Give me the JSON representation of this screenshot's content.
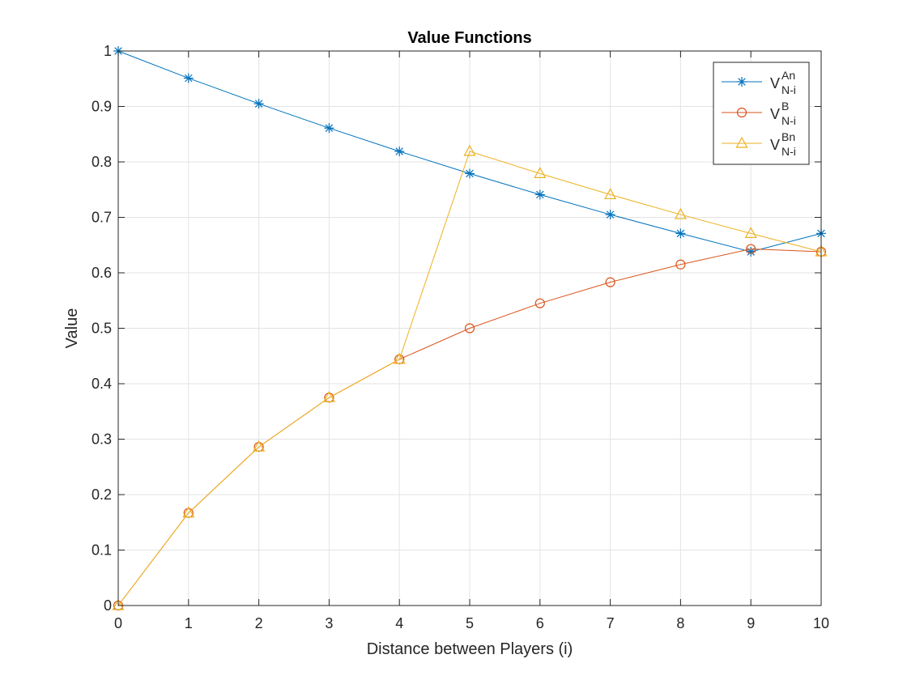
{
  "chart_data": {
    "type": "line",
    "title": "Value Functions",
    "xlabel": "Distance between Players (i)",
    "ylabel": "Value",
    "xlim": [
      0,
      10
    ],
    "ylim": [
      0,
      1
    ],
    "x_ticks": [
      0,
      1,
      2,
      3,
      4,
      5,
      6,
      7,
      8,
      9,
      10
    ],
    "y_ticks": [
      0,
      0.1,
      0.2,
      0.3,
      0.4,
      0.5,
      0.6,
      0.7,
      0.8,
      0.9,
      1
    ],
    "x_tick_labels": [
      "0",
      "1",
      "2",
      "3",
      "4",
      "5",
      "6",
      "7",
      "8",
      "9",
      "10"
    ],
    "y_tick_labels": [
      "0",
      "0.1",
      "0.2",
      "0.3",
      "0.4",
      "0.5",
      "0.6",
      "0.7",
      "0.8",
      "0.9",
      "1"
    ],
    "grid": true,
    "legend_position": "top-right",
    "x": [
      0,
      1,
      2,
      3,
      4,
      5,
      6,
      7,
      8,
      9,
      10
    ],
    "series": [
      {
        "name": "V",
        "superscript": "An",
        "subscript": "N-i",
        "color": "#0072BD",
        "marker": "asterisk",
        "values": [
          1.0,
          0.951,
          0.905,
          0.861,
          0.819,
          0.779,
          0.741,
          0.705,
          0.671,
          0.638,
          0.671
        ]
      },
      {
        "name": "V",
        "superscript": "B",
        "subscript": "N-i",
        "color": "#D95319",
        "marker": "circle",
        "values": [
          0.0,
          0.167,
          0.286,
          0.375,
          0.444,
          0.5,
          0.545,
          0.583,
          0.615,
          0.643,
          0.638
        ]
      },
      {
        "name": "V",
        "superscript": "Bn",
        "subscript": "N-i",
        "color": "#EDB120",
        "marker": "triangle",
        "values": [
          0.0,
          0.167,
          0.286,
          0.375,
          0.444,
          0.819,
          0.779,
          0.741,
          0.705,
          0.671,
          0.638
        ]
      }
    ]
  }
}
